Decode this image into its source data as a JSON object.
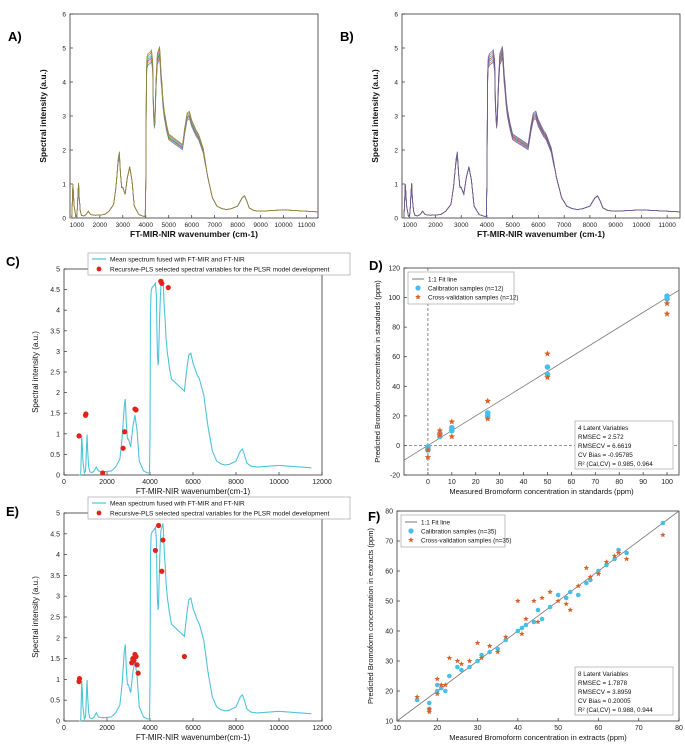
{
  "figure": {
    "panels": {
      "A": {
        "letter": "A)",
        "xlabel": "FT-MIR-NIR wavenumber (cm-1)",
        "ylabel": "Spectral intensity (a.u.)"
      },
      "B": {
        "letter": "B)",
        "xlabel": "FT-MIR-NIR wavenumber (cm-1)",
        "ylabel": "Spectral intensity (a.u.)"
      },
      "C": {
        "letter": "C)",
        "xlabel": "FT-MIR-NIR wavenumber(cm-1)",
        "ylabel": "Spectral intensity (a.u.)",
        "legend": [
          "Mean spectrum fused with FT-MIR and FT-NIR",
          "Recursive-PLS selected spectral variables for the PLSR model development"
        ]
      },
      "D": {
        "letter": "D)",
        "xlabel": "Measured Bromoform concentration in standards (ppm)",
        "ylabel": "Predicted Bromoform concentration in standards (ppm)",
        "legend": [
          "1:1 Fit line",
          "Calibration samples (n=12)",
          "Cross-validation samples (n=12)"
        ],
        "stats": [
          "4 Latent Variables",
          "RMSEC = 2.572",
          "RMSECV = 6.6619",
          "CV Bias = -0.95785",
          "R² (Cal,CV) = 0.985, 0.964"
        ]
      },
      "E": {
        "letter": "E)",
        "xlabel": "FT-MIR-NIR wavenumber(cm-1)",
        "ylabel": "Spectral intensity (a.u.)",
        "legend": [
          "Mean spectrum fused with FT-MIR and FT-NIR",
          "Recursive-PLS selected spectral variables for the PLSR model development"
        ]
      },
      "F": {
        "letter": "F)",
        "xlabel": "Measured Bromoform concentration in extracts (ppm)",
        "ylabel": "Predicted Bromoform concentration in extracts (ppm)",
        "legend": [
          "1:1 Fit line",
          "Calibration samples (n=35)",
          "Cross-validation samples (n=35)"
        ],
        "stats": [
          "8 Latent Variables",
          "RMSEC = 1.7878",
          "RMSECV = 3.8959",
          "CV Bias = 0.20005",
          "R² (Cal,CV) = 0.988, 0.944"
        ]
      }
    },
    "colors": {
      "spectrum": "#4fc3d9",
      "selected": "#e0241b",
      "calibration": "#48bfe8",
      "crossval": "#d9622b",
      "axis": "#333333",
      "fitline": "#777777"
    }
  },
  "chart_data": [
    {
      "id": "A",
      "type": "line",
      "title": "",
      "xlabel": "FT-MIR-NIR wavenumber (cm-1)",
      "ylabel": "Spectral intensity (a.u.)",
      "xlim": [
        700,
        11500
      ],
      "ylim": [
        0,
        6
      ],
      "xticks": [
        1000,
        2000,
        3000,
        4000,
        5000,
        6000,
        7000,
        8000,
        9000,
        10000,
        11000
      ],
      "yticks": [
        0,
        1,
        2,
        3,
        4,
        5,
        6
      ],
      "spectrum_x": [
        700,
        780,
        830,
        870,
        950,
        1000,
        1030,
        1070,
        1100,
        1150,
        1200,
        1300,
        1400,
        1500,
        1600,
        1800,
        2000,
        2200,
        2400,
        2600,
        2700,
        2800,
        2850,
        2900,
        2950,
        3000,
        3100,
        3200,
        3300,
        3400,
        3500,
        3700,
        3900,
        3990,
        4000,
        4005,
        4020,
        4050,
        4100,
        4200,
        4250,
        4300,
        4320,
        4350,
        4380,
        4400,
        4450,
        4500,
        4550,
        4600,
        4620,
        4660,
        4700,
        4750,
        4800,
        4900,
        5000,
        5200,
        5400,
        5600,
        5700,
        5800,
        5900,
        6000,
        6100,
        6200,
        6300,
        6500,
        6700,
        6900,
        7100,
        7300,
        7500,
        7700,
        8000,
        8200,
        8300,
        8400,
        8500,
        8700,
        9000,
        9500,
        10000,
        10500,
        11000,
        11500
      ],
      "spectrum_y": [
        0.0,
        0.0,
        1.1,
        0.4,
        0.05,
        0.1,
        0.4,
        1.1,
        0.6,
        0.2,
        0.08,
        0.06,
        0.1,
        0.2,
        0.1,
        0.08,
        0.09,
        0.1,
        0.2,
        0.4,
        0.9,
        1.7,
        1.9,
        1.3,
        0.9,
        0.9,
        0.7,
        1.2,
        1.5,
        1.1,
        0.35,
        0.1,
        0.05,
        0.05,
        1.0,
        2.6,
        4.0,
        4.6,
        4.7,
        4.75,
        4.8,
        4.5,
        3.6,
        3.0,
        2.7,
        2.9,
        4.0,
        4.7,
        4.8,
        4.9,
        4.8,
        4.2,
        3.9,
        3.4,
        3.1,
        2.7,
        2.4,
        2.3,
        2.2,
        2.1,
        2.6,
        3.0,
        3.05,
        2.8,
        2.65,
        2.5,
        2.4,
        2.0,
        1.2,
        0.6,
        0.35,
        0.28,
        0.25,
        0.27,
        0.35,
        0.6,
        0.65,
        0.5,
        0.3,
        0.22,
        0.2,
        0.22,
        0.24,
        0.22,
        0.2,
        0.18
      ]
    },
    {
      "id": "B",
      "type": "line",
      "title": "",
      "xlabel": "FT-MIR-NIR wavenumber (cm-1)",
      "ylabel": "Spectral intensity (a.u.)",
      "xlim": [
        700,
        11500
      ],
      "ylim": [
        0,
        6
      ],
      "xticks": [
        1000,
        2000,
        3000,
        4000,
        5000,
        6000,
        7000,
        8000,
        9000,
        10000,
        11000
      ],
      "yticks": [
        0,
        1,
        2,
        3,
        4,
        5,
        6
      ],
      "note": "same spectra as A"
    },
    {
      "id": "C",
      "type": "line",
      "title": "",
      "xlabel": "FT-MIR-NIR wavenumber(cm-1)",
      "ylabel": "Spectral intensity (a.u.)",
      "xlim": [
        0,
        12000
      ],
      "ylim": [
        0,
        5
      ],
      "xticks": [
        0,
        2000,
        4000,
        6000,
        8000,
        10000,
        12000
      ],
      "yticks": [
        0,
        0.5,
        1,
        1.5,
        2,
        2.5,
        3,
        3.5,
        4,
        4.5,
        5
      ],
      "selected_x": [
        700,
        1000,
        1020,
        1800,
        2750,
        2820,
        3300,
        3350,
        4500,
        4550,
        4850
      ],
      "selected_y": [
        0.95,
        1.45,
        1.48,
        0.05,
        0.65,
        1.05,
        1.6,
        1.58,
        4.7,
        4.65,
        4.55
      ]
    },
    {
      "id": "D",
      "type": "scatter",
      "title": "",
      "xlabel": "Measured Bromoform concentration in standards (ppm)",
      "ylabel": "Predicted Bromoform concentration in standards (ppm)",
      "xlim": [
        -10,
        105
      ],
      "ylim": [
        -20,
        120
      ],
      "xticks": [
        0,
        10,
        20,
        30,
        40,
        50,
        60,
        70,
        80,
        90,
        100
      ],
      "yticks": [
        -20,
        0,
        20,
        40,
        60,
        80,
        100,
        120
      ],
      "series": [
        {
          "name": "Calibration samples (n=12)",
          "x": [
            0,
            0,
            5,
            5,
            10,
            10,
            25,
            25,
            50,
            50,
            100,
            100
          ],
          "y": [
            -1,
            -3,
            6,
            8,
            10,
            12,
            20,
            22,
            48,
            53,
            99,
            101
          ]
        },
        {
          "name": "Cross-validation samples (n=12)",
          "x": [
            0,
            0,
            5,
            5,
            10,
            10,
            25,
            25,
            50,
            50,
            100,
            100
          ],
          "y": [
            -3,
            -8,
            7,
            10,
            6,
            16,
            18,
            30,
            46,
            62,
            89,
            96
          ]
        }
      ]
    },
    {
      "id": "E",
      "type": "line",
      "title": "",
      "xlabel": "FT-MIR-NIR wavenumber(cm-1)",
      "ylabel": "Spectral intensity (a.u.)",
      "xlim": [
        0,
        12000
      ],
      "ylim": [
        0,
        5
      ],
      "xticks": [
        0,
        2000,
        4000,
        6000,
        8000,
        10000,
        12000
      ],
      "yticks": [
        0,
        0.5,
        1,
        1.5,
        2,
        2.5,
        3,
        3.5,
        4,
        4.5,
        5
      ],
      "selected_x": [
        700,
        720,
        3150,
        3200,
        3250,
        3300,
        3350,
        3400,
        3450,
        4250,
        4400,
        4550,
        4600,
        5600
      ],
      "selected_y": [
        0.95,
        1.02,
        1.4,
        1.5,
        1.45,
        1.6,
        1.55,
        1.35,
        1.15,
        4.1,
        4.7,
        3.6,
        4.35,
        1.55
      ]
    },
    {
      "id": "F",
      "type": "scatter",
      "title": "",
      "xlabel": "Measured Bromoform concentration in extracts (ppm)",
      "ylabel": "Predicted Bromoform concentration in extracts (ppm)",
      "xlim": [
        10,
        80
      ],
      "ylim": [
        10,
        80
      ],
      "xticks": [
        10,
        20,
        30,
        40,
        50,
        60,
        70,
        80
      ],
      "yticks": [
        10,
        20,
        30,
        40,
        50,
        60,
        70,
        80
      ],
      "series": [
        {
          "name": "Calibration samples (n=35)",
          "x": [
            15,
            18,
            18,
            20,
            20,
            21,
            22,
            23,
            25,
            26,
            28,
            30,
            31,
            33,
            35,
            37,
            40,
            41,
            42,
            44,
            45,
            46,
            48,
            50,
            52,
            53,
            55,
            57,
            58,
            60,
            62,
            64,
            65,
            67,
            76
          ],
          "y": [
            17,
            16,
            14,
            22,
            20,
            21,
            20,
            25,
            28,
            27,
            28,
            30,
            32,
            33,
            34,
            37,
            40,
            41,
            42,
            43,
            47,
            44,
            48,
            52,
            51,
            53,
            52,
            56,
            57,
            60,
            62,
            64,
            67,
            66,
            76
          ]
        },
        {
          "name": "Cross-validation samples (n=35)",
          "x": [
            15,
            18,
            18,
            20,
            20,
            21,
            22,
            23,
            25,
            26,
            28,
            30,
            31,
            33,
            35,
            37,
            40,
            41,
            42,
            44,
            45,
            46,
            48,
            50,
            52,
            53,
            55,
            57,
            58,
            60,
            62,
            64,
            65,
            67,
            76
          ],
          "y": [
            18,
            14,
            13,
            24,
            19,
            22,
            22,
            31,
            30,
            29,
            30,
            36,
            31,
            35,
            33,
            38,
            50,
            39,
            44,
            50,
            43,
            51,
            53,
            50,
            49,
            47,
            55,
            61,
            58,
            59,
            63,
            65,
            66,
            64,
            72
          ]
        }
      ]
    }
  ]
}
